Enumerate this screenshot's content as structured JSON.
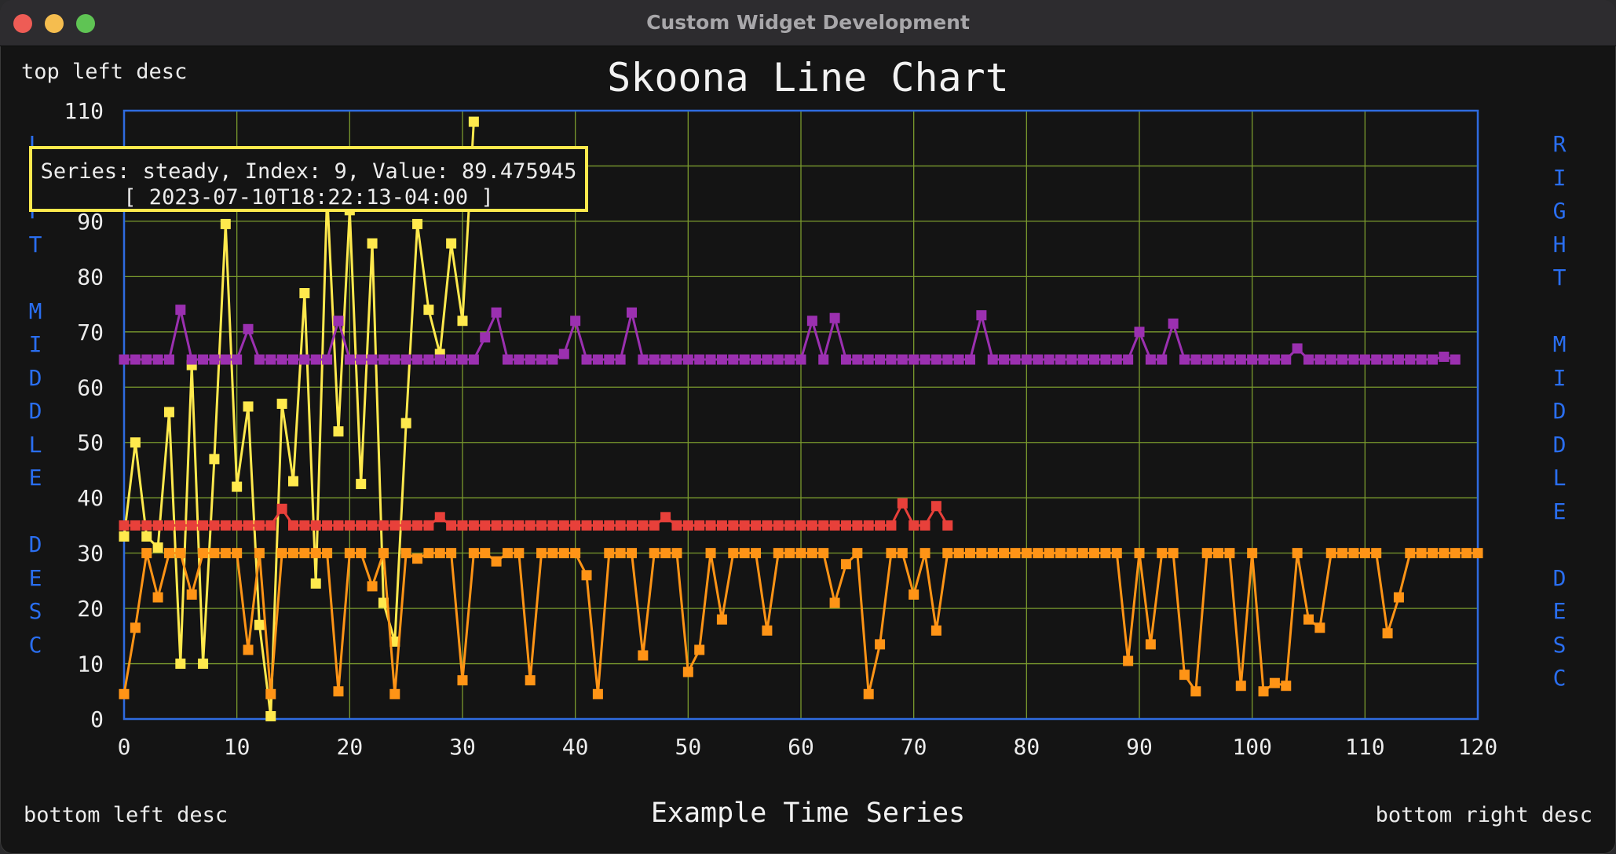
{
  "window": {
    "title": "Custom Widget Development"
  },
  "labels": {
    "top_left": "top left desc",
    "bottom_left": "bottom left desc",
    "bottom_right": "bottom right desc",
    "left_middle": "LEFT MIDDLE DESC",
    "right_middle": "RIGHT MIDDLE DESC"
  },
  "tooltip": {
    "line1": "Series: steady, Index: 9, Value: 89.475945",
    "line2": "[ 2023-07-10T18:22:13-04:00 ]"
  },
  "chart_data": {
    "type": "line",
    "title": "Skoona Line Chart",
    "xlabel": "Example Time Series",
    "ylabel": "",
    "xlim": [
      0,
      120
    ],
    "ylim": [
      0,
      110
    ],
    "x_ticks": [
      0,
      10,
      20,
      30,
      40,
      50,
      60,
      70,
      80,
      90,
      100,
      110,
      120
    ],
    "y_ticks": [
      0,
      10,
      20,
      30,
      40,
      50,
      60,
      70,
      80,
      90,
      100,
      110
    ],
    "grid": true,
    "colors": {
      "grid": "#7a9a2e",
      "frame": "#2f6be0",
      "text": "#ececec"
    },
    "series": [
      {
        "color": "#ffe94d",
        "values": [
          33,
          50,
          33,
          31,
          55.5,
          10,
          64,
          10,
          47,
          89.5,
          42,
          56.5,
          17,
          0.5,
          57,
          43,
          77,
          24.5,
          95,
          52,
          92,
          42.5,
          86,
          21,
          14,
          53.5,
          89.5,
          74,
          66,
          86,
          72,
          108
        ]
      },
      {
        "color": "#9b30b0",
        "values": [
          65,
          65,
          65,
          65,
          65,
          74,
          65,
          65,
          65,
          65,
          65,
          70.5,
          65,
          65,
          65,
          65,
          65,
          65,
          65,
          72,
          65,
          65,
          65,
          65,
          65,
          65,
          65,
          65,
          65,
          65,
          65,
          65,
          69,
          73.5,
          65,
          65,
          65,
          65,
          65,
          66,
          72,
          65,
          65,
          65,
          65,
          73.5,
          65,
          65,
          65,
          65,
          65,
          65,
          65,
          65,
          65,
          65,
          65,
          65,
          65,
          65,
          65,
          72,
          65,
          72.5,
          65,
          65,
          65,
          65,
          65,
          65,
          65,
          65,
          65,
          65,
          65,
          65,
          73,
          65,
          65,
          65,
          65,
          65,
          65,
          65,
          65,
          65,
          65,
          65,
          65,
          65,
          70,
          65,
          65,
          71.5,
          65,
          65,
          65,
          65,
          65,
          65,
          65,
          65,
          65,
          65,
          67,
          65,
          65,
          65,
          65,
          65,
          65,
          65,
          65,
          65,
          65,
          65,
          65,
          65.5,
          65
        ]
      },
      {
        "color": "#e8403a",
        "values": [
          35,
          35,
          35,
          35,
          35,
          35,
          35,
          35,
          35,
          35,
          35,
          35,
          35,
          35,
          38,
          35,
          35,
          35,
          35,
          35,
          35,
          35,
          35,
          35,
          35,
          35,
          35,
          35,
          36.5,
          35,
          35,
          35,
          35,
          35,
          35,
          35,
          35,
          35,
          35,
          35,
          35,
          35,
          35,
          35,
          35,
          35,
          35,
          35,
          36.5,
          35,
          35,
          35,
          35,
          35,
          35,
          35,
          35,
          35,
          35,
          35,
          35,
          35,
          35,
          35,
          35,
          35,
          35,
          35,
          35,
          39,
          35,
          35,
          38.5,
          35
        ]
      },
      {
        "color": "#ff9416",
        "values": [
          4.5,
          16.5,
          30,
          22,
          30,
          30,
          22.5,
          30,
          30,
          30,
          30,
          12.5,
          30,
          4.5,
          30,
          30,
          30,
          30,
          30,
          5,
          30,
          30,
          24,
          30,
          4.5,
          30,
          29,
          30,
          30,
          30,
          7,
          30,
          30,
          28.5,
          30,
          30,
          7,
          30,
          30,
          30,
          30,
          26,
          4.5,
          30,
          30,
          30,
          11.5,
          30,
          30,
          30,
          8.5,
          12.5,
          30,
          18,
          30,
          30,
          30,
          16,
          30,
          30,
          30,
          30,
          30,
          21,
          28,
          30,
          4.5,
          13.5,
          30,
          30,
          22.5,
          30,
          16,
          30,
          30,
          30,
          30,
          30,
          30,
          30,
          30,
          30,
          30,
          30,
          30,
          30,
          30,
          30,
          30,
          10.5,
          30,
          13.5,
          30,
          30,
          8,
          5,
          30,
          30,
          30,
          6,
          30,
          5,
          6.5,
          6,
          30,
          18,
          16.5,
          30,
          30,
          30,
          30,
          30,
          15.5,
          22,
          30,
          30,
          30,
          30,
          30,
          30,
          30
        ]
      }
    ]
  }
}
